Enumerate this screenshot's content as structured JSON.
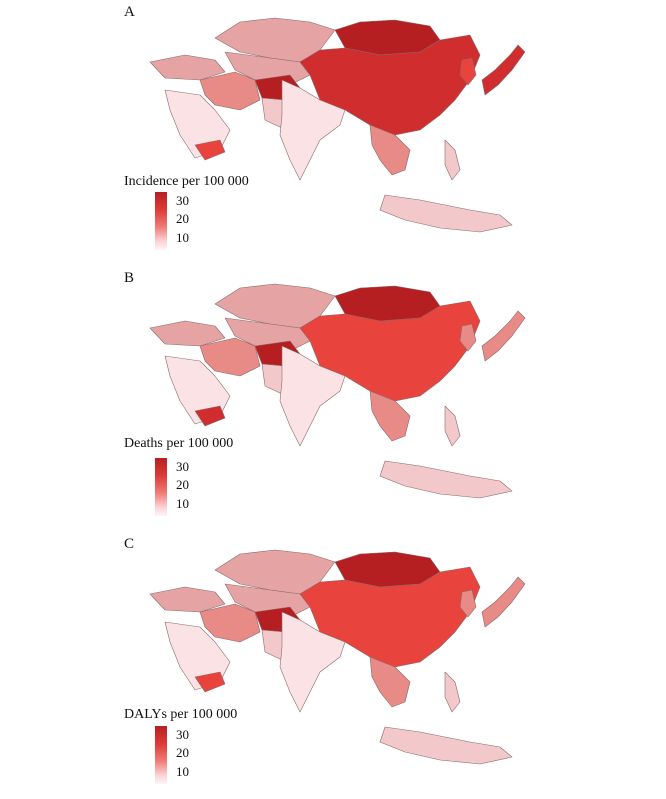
{
  "colors": {
    "very_high": "#b51f22",
    "high": "#cf2d2e",
    "mid_high": "#e8433d",
    "mid": "#e88a86",
    "low_mid": "#e6a3a4",
    "low": "#f3c8ca",
    "very_low": "#fbe3e5",
    "border": "#8a6a6a",
    "background": "#ffffff"
  },
  "panels": [
    {
      "letter": "A",
      "legend_title": "Incidence per 100 000",
      "legend_ticks": [
        "30",
        "20",
        "10"
      ]
    },
    {
      "letter": "B",
      "legend_title": "Deaths per 100 000",
      "legend_ticks": [
        "30",
        "20",
        "10"
      ]
    },
    {
      "letter": "C",
      "legend_title": "DALYs per 100 000",
      "legend_ticks": [
        "30",
        "20",
        "10"
      ]
    }
  ]
}
